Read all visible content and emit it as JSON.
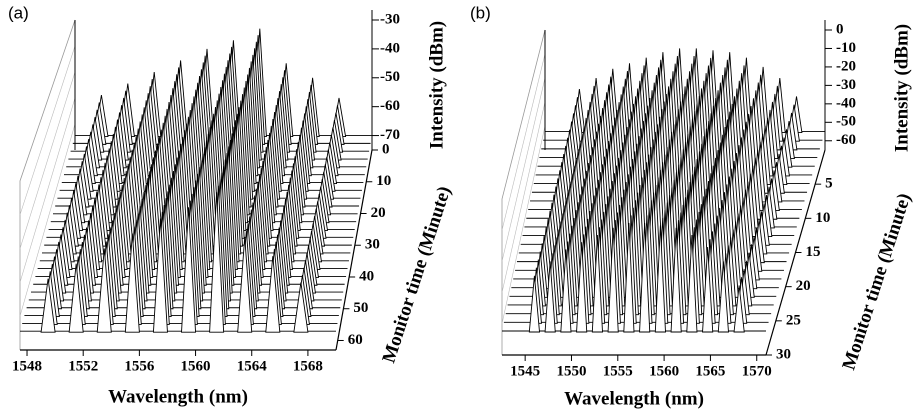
{
  "chart_data": [
    {
      "type": "waterfall3d",
      "panel_label": "(a)",
      "x_label": "Wavelength (nm)",
      "y_label": "Intensity (dBm)",
      "z_label": "Monitor time (Minute)",
      "xlim": [
        1547.5,
        1570
      ],
      "xticks": [
        1548,
        1552,
        1556,
        1560,
        1564,
        1568
      ],
      "ylim": [
        -75,
        -30
      ],
      "yticks": [
        -30,
        -40,
        -50,
        -60,
        -70
      ],
      "zlim": [
        0,
        63
      ],
      "zticks": [
        0,
        10,
        20,
        30,
        40,
        50,
        60
      ],
      "noise_floor": -70,
      "peaks": {
        "wavelengths": [
          1549.5,
          1551.5,
          1553.5,
          1555.5,
          1557.5,
          1559.5,
          1561.5,
          1563.5,
          1565.5,
          1567.5
        ],
        "intensities": [
          -56,
          -52,
          -48,
          -44,
          -40,
          -37,
          -33,
          -45,
          -50,
          -57
        ]
      },
      "color": "#000000"
    },
    {
      "type": "waterfall3d",
      "panel_label": "(b)",
      "x_label": "Wavelength (nm)",
      "y_label": "Intensity (dBm)",
      "z_label": "Monitor time (Minute)",
      "xlim": [
        1542.5,
        1571
      ],
      "xticks": [
        1545,
        1550,
        1555,
        1560,
        1565,
        1570
      ],
      "ylim": [
        -65,
        0
      ],
      "yticks": [
        0,
        -10,
        -20,
        -30,
        -40,
        -50,
        -60
      ],
      "zlim": [
        0,
        30
      ],
      "zticks": [
        5,
        10,
        15,
        20,
        25,
        30
      ],
      "noise_floor": -55,
      "peaks": {
        "wavelengths": [
          1546,
          1547.7,
          1549.4,
          1551.1,
          1552.8,
          1554.5,
          1556.2,
          1557.9,
          1559.6,
          1561.3,
          1563,
          1564.7,
          1566.4,
          1568.1
        ],
        "intensities": [
          -32,
          -26,
          -21,
          -18,
          -15,
          -12,
          -10,
          -10,
          -11,
          -12,
          -15,
          -20,
          -26,
          -36
        ]
      },
      "color": "#000000"
    }
  ]
}
